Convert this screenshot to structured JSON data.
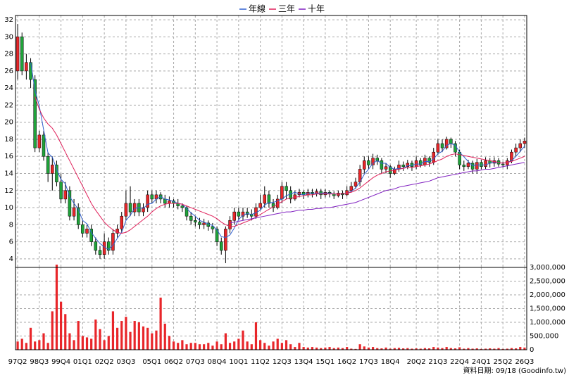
{
  "chart_data": [
    {
      "type": "candlestick",
      "legend": "top",
      "grid": true,
      "up_color": "#e8262a",
      "down_color": "#1fa33a",
      "wick_color": "#000000",
      "ylim": [
        3,
        32.5
      ],
      "yticks": [
        4,
        6,
        8,
        10,
        12,
        14,
        16,
        18,
        20,
        22,
        24,
        26,
        28,
        30,
        32
      ],
      "open": [
        26,
        30,
        26,
        27,
        25,
        17,
        18.5,
        16,
        14,
        15,
        13,
        11,
        12,
        9,
        10,
        8,
        7,
        7.5,
        6,
        5,
        4.5,
        6,
        5,
        7,
        7.5,
        9,
        10.5,
        9.5,
        10.5,
        9.5,
        10,
        11.5,
        11,
        11.5,
        11,
        10.5,
        10.8,
        10.5,
        10.2,
        10,
        9,
        8.5,
        8.3,
        8,
        8.2,
        7.8,
        7.5,
        6,
        5,
        7.5,
        8.5,
        9.5,
        9,
        9.5,
        9.2,
        9,
        10,
        10.5,
        11.5,
        10.5,
        10,
        11,
        12.5,
        12,
        11,
        11.5,
        11.8,
        11.5,
        11.8,
        11.6,
        11.9,
        11.5,
        11.8,
        11.6,
        11.4,
        11.7,
        11.5,
        12,
        12.5,
        13,
        14.5,
        15.5,
        15,
        15.8,
        15.5,
        14.5,
        14.8,
        14,
        14.5,
        15,
        14.8,
        15.2,
        14.8,
        15.5,
        15,
        15.8,
        15.3,
        16.5,
        17.5,
        17,
        18,
        17.5,
        16.5,
        15,
        14.8,
        15.2,
        14.5,
        15.3,
        14.8,
        15.5,
        15.2,
        15.5,
        15.1,
        15,
        15.5,
        16.5,
        17,
        17.5
      ],
      "high": [
        31.5,
        30.5,
        28,
        27.5,
        25.5,
        19,
        19,
        16.5,
        16,
        15.5,
        14,
        13,
        12.5,
        11,
        10.5,
        8.5,
        8,
        8,
        6.5,
        5.5,
        7,
        6.5,
        7.5,
        8,
        9.5,
        12,
        12.5,
        11,
        11,
        10.5,
        12,
        12,
        12,
        11.8,
        11.5,
        11.3,
        11,
        11,
        10.5,
        10.2,
        9.5,
        9,
        8.8,
        8.7,
        8.5,
        8.2,
        7.8,
        6.5,
        7.8,
        9,
        10,
        10,
        10,
        10,
        9.8,
        10.5,
        11.5,
        12.5,
        12,
        11,
        11.5,
        13,
        13,
        12.5,
        12,
        12.2,
        12,
        12.2,
        12.2,
        12.2,
        12.2,
        12.2,
        12,
        11.9,
        12,
        12,
        12.5,
        13,
        13.5,
        15,
        16,
        16,
        16.3,
        16.2,
        15.8,
        15.2,
        15,
        14.8,
        15.5,
        15.4,
        15.6,
        15.5,
        16,
        15.8,
        16.2,
        16,
        17,
        18,
        18,
        18.3,
        18.2,
        17.8,
        16.8,
        15.5,
        15.6,
        15.5,
        15.7,
        15.6,
        15.9,
        15.8,
        15.9,
        15.8,
        15.4,
        15.8,
        16.8,
        17.5,
        18,
        18.2
      ],
      "low": [
        25,
        25.5,
        25,
        24,
        16.5,
        16.5,
        15.5,
        13,
        12,
        12.5,
        10.5,
        10.5,
        8.5,
        8.5,
        7.5,
        6.5,
        6.5,
        5.5,
        4.5,
        4,
        4,
        4.5,
        4.5,
        6.5,
        7,
        8.5,
        9,
        9,
        9,
        9,
        9.5,
        10.5,
        10.5,
        10.5,
        10,
        10,
        10,
        9.8,
        9.5,
        8.5,
        8,
        7.8,
        7.5,
        7.5,
        7.3,
        7,
        5.5,
        4.5,
        3.5,
        7,
        8,
        8.5,
        8.5,
        8.8,
        8.5,
        8.7,
        9.8,
        10,
        10,
        9.5,
        9.8,
        10.5,
        11,
        10.5,
        10.8,
        11.2,
        11,
        11.2,
        11.2,
        11.3,
        11,
        11.2,
        11.2,
        11,
        11.2,
        11,
        11.3,
        11.8,
        12.2,
        12.5,
        14,
        14.5,
        14.5,
        15,
        14,
        14,
        13.5,
        13.8,
        14.2,
        14.3,
        14.5,
        14.3,
        14.5,
        14.7,
        14.8,
        14.8,
        15,
        16.2,
        16.5,
        16.8,
        17,
        16,
        14.5,
        14.3,
        14.5,
        14,
        14,
        14.5,
        14.5,
        14.7,
        14.8,
        14.8,
        14.7,
        14.5,
        15.2,
        16,
        16.5,
        17
      ],
      "close": [
        30,
        26,
        27,
        25,
        17,
        18.5,
        16,
        14,
        15,
        13,
        11,
        12,
        9,
        10,
        8,
        7,
        7.5,
        6,
        5,
        4.5,
        6,
        5,
        7,
        7.5,
        9,
        10.5,
        9.5,
        10.5,
        9.5,
        10,
        11.5,
        11,
        11.5,
        11,
        10.5,
        10.8,
        10.5,
        10.2,
        10,
        9,
        8.5,
        8.3,
        8,
        8.2,
        7.8,
        7.5,
        6,
        5,
        7.5,
        8.5,
        9.5,
        9,
        9.5,
        9.2,
        9,
        10,
        10.5,
        11.5,
        10.5,
        10,
        11,
        12.5,
        12,
        11,
        11.5,
        11.8,
        11.5,
        11.8,
        11.6,
        11.9,
        11.5,
        11.8,
        11.6,
        11.4,
        11.7,
        11.5,
        12,
        12.5,
        13,
        14.5,
        15.5,
        15,
        15.8,
        15.5,
        14.5,
        14.8,
        14,
        14.5,
        15,
        14.8,
        15.2,
        14.8,
        15.5,
        15,
        15.8,
        15.3,
        16.5,
        17.5,
        17,
        18,
        17.5,
        16.5,
        15,
        14.8,
        15.2,
        14.5,
        15.3,
        14.8,
        15.5,
        15.2,
        15.5,
        15.1,
        15,
        15.5,
        16.5,
        17,
        17.5,
        17.8
      ],
      "series": [
        {
          "name": "年線",
          "color": "#3060d0",
          "values": [
            null,
            null,
            null,
            27,
            23.75,
            21.9,
            19.1,
            16.4,
            15.9,
            14.5,
            13.3,
            12.8,
            11.3,
            10.5,
            9.8,
            8.5,
            8.1,
            7.1,
            6.4,
            5.8,
            5.4,
            5.1,
            5.6,
            6.4,
            7.1,
            8.5,
            9.1,
            9.9,
            10,
            9.9,
            10.4,
            10.5,
            11,
            11.3,
            11,
            10.9,
            10.7,
            10.5,
            10.4,
            9.9,
            9.4,
            9,
            8.5,
            8.3,
            8.1,
            7.9,
            7.4,
            6.6,
            6.5,
            6.8,
            7.6,
            8.6,
            9.1,
            9.3,
            9.2,
            9.4,
            9.7,
            10.3,
            10.6,
            10.6,
            10.8,
            11,
            11.4,
            11.6,
            11.8,
            11.6,
            11.5,
            11.7,
            11.7,
            11.7,
            11.7,
            11.7,
            11.7,
            11.6,
            11.6,
            11.6,
            11.7,
            11.9,
            12.3,
            13,
            13.9,
            14.5,
            15.2,
            15.5,
            15.2,
            15.2,
            14.7,
            14.5,
            14.6,
            14.6,
            14.9,
            14.95,
            15.1,
            15.1,
            15.4,
            15.4,
            15.7,
            16.3,
            16.6,
            17.3,
            17.5,
            17.3,
            16.5,
            15.95,
            15.4,
            14.9,
            15,
            15,
            15,
            15.2,
            15.3,
            15.3,
            15.2,
            15.3,
            15.5,
            16,
            16.6,
            17.2
          ]
        },
        {
          "name": "三年",
          "color": "#e0205a",
          "values": [
            null,
            null,
            null,
            null,
            23,
            21.5,
            20.5,
            19.8,
            19.3,
            18.5,
            17.5,
            16.5,
            15.5,
            14.5,
            13.5,
            12.5,
            11.5,
            10.5,
            9.7,
            9,
            8.3,
            7.8,
            7.4,
            7.1,
            7,
            7.1,
            7.4,
            7.8,
            8.2,
            8.6,
            9,
            9.5,
            9.9,
            10.2,
            10.4,
            10.5,
            10.5,
            10.5,
            10.4,
            10.2,
            10,
            9.8,
            9.6,
            9.4,
            9.2,
            9,
            8.7,
            8.3,
            8,
            7.8,
            7.8,
            8,
            8.2,
            8.4,
            8.6,
            8.9,
            9.2,
            9.5,
            9.8,
            10.1,
            10.4,
            10.7,
            11,
            11.1,
            11.2,
            11.3,
            11.4,
            11.5,
            11.5,
            11.6,
            11.6,
            11.6,
            11.6,
            11.6,
            11.6,
            11.6,
            11.7,
            11.8,
            12,
            12.3,
            12.7,
            13.1,
            13.5,
            13.8,
            14,
            14.2,
            14.3,
            14.4,
            14.5,
            14.6,
            14.7,
            14.7,
            14.8,
            14.9,
            15,
            15.1,
            15.3,
            15.5,
            15.7,
            16,
            16.2,
            16.3,
            16.2,
            16.1,
            16,
            15.9,
            15.8,
            15.7,
            15.6,
            15.5,
            15.4,
            15.3,
            15.2,
            15.3,
            15.4,
            15.6,
            15.8,
            16
          ]
        },
        {
          "name": "十年",
          "color": "#8020c0",
          "values": [
            null,
            null,
            null,
            null,
            null,
            null,
            null,
            null,
            null,
            null,
            null,
            null,
            null,
            null,
            null,
            null,
            null,
            null,
            null,
            null,
            null,
            null,
            null,
            null,
            null,
            null,
            null,
            null,
            null,
            null,
            null,
            null,
            null,
            null,
            null,
            null,
            null,
            null,
            null,
            null,
            null,
            null,
            null,
            null,
            null,
            null,
            null,
            null,
            null,
            8.2,
            8.3,
            8.4,
            8.5,
            8.6,
            8.7,
            8.8,
            8.9,
            9,
            9.1,
            9.2,
            9.3,
            9.4,
            9.5,
            9.5,
            9.6,
            9.7,
            9.7,
            9.8,
            9.8,
            9.9,
            9.9,
            10,
            10,
            10.1,
            10.2,
            10.3,
            10.4,
            10.5,
            10.6,
            10.8,
            11,
            11.2,
            11.4,
            11.6,
            11.8,
            12,
            12.1,
            12.2,
            12.4,
            12.5,
            12.6,
            12.7,
            12.8,
            12.9,
            13,
            13.1,
            13.3,
            13.5,
            13.6,
            13.7,
            13.8,
            13.9,
            14,
            14.1,
            14.2,
            14.3,
            14.3,
            14.4,
            14.5,
            14.5,
            14.6,
            14.7,
            14.8,
            14.9,
            15,
            15.1,
            15.2,
            15.3
          ]
        }
      ]
    },
    {
      "type": "bar",
      "color": "#e8262a",
      "grid": true,
      "ylim": [
        0,
        3000000
      ],
      "yticks": [
        0,
        {
          "value": 500000,
          "label": "500,000"
        },
        {
          "value": 1000000,
          "label": "1,000,000"
        },
        {
          "value": 1500000,
          "label": "1,500,000"
        },
        {
          "value": 2000000,
          "label": "2,000,000"
        },
        {
          "value": 2500000,
          "label": "2,500,000"
        },
        {
          "value": 3000000,
          "label": "3,000,000"
        }
      ],
      "categories": [
        "97Q2",
        null,
        null,
        null,
        null,
        "98Q3",
        null,
        null,
        null,
        null,
        "99Q4",
        null,
        null,
        null,
        null,
        "01Q1",
        null,
        null,
        null,
        null,
        "02Q2",
        null,
        null,
        null,
        null,
        "03Q3",
        null,
        null,
        null,
        null,
        null,
        "05Q1",
        null,
        null,
        null,
        null,
        "06Q2",
        null,
        null,
        null,
        null,
        "07Q3",
        null,
        null,
        null,
        null,
        "08Q4",
        null,
        null,
        null,
        null,
        "10Q1",
        null,
        null,
        null,
        null,
        "11Q2",
        null,
        null,
        null,
        null,
        "12Q3",
        null,
        null,
        null,
        null,
        "13Q4",
        null,
        null,
        null,
        null,
        "15Q1",
        null,
        null,
        null,
        null,
        "16Q2",
        null,
        null,
        null,
        null,
        "17Q3",
        null,
        null,
        null,
        null,
        "18Q4",
        null,
        null,
        null,
        null,
        null,
        "20Q2",
        null,
        null,
        null,
        null,
        "21Q3",
        null,
        null,
        null,
        null,
        "22Q4",
        null,
        null,
        null,
        null,
        "24Q1",
        null,
        null,
        null,
        null,
        "25Q2",
        null,
        null,
        null,
        null,
        "26Q3"
      ],
      "values": [
        300000,
        400000,
        250000,
        800000,
        300000,
        350000,
        600000,
        250000,
        1400000,
        3100000,
        1750000,
        1300000,
        600000,
        350000,
        1050000,
        500000,
        450000,
        400000,
        1100000,
        750000,
        350000,
        500000,
        1400000,
        800000,
        1050000,
        1200000,
        650000,
        1050000,
        1000000,
        850000,
        800000,
        600000,
        700000,
        1900000,
        950000,
        500000,
        300000,
        250000,
        350000,
        200000,
        250000,
        250000,
        200000,
        200000,
        250000,
        150000,
        300000,
        200000,
        600000,
        250000,
        300000,
        400000,
        700000,
        300000,
        200000,
        1000000,
        350000,
        250000,
        150000,
        300000,
        400000,
        250000,
        350000,
        200000,
        100000,
        250000,
        100000,
        80000,
        100000,
        80000,
        60000,
        80000,
        100000,
        60000,
        80000,
        60000,
        100000,
        40000,
        30000,
        200000,
        120000,
        80000,
        100000,
        60000,
        50000,
        80000,
        40000,
        60000,
        70000,
        50000,
        60000,
        40000,
        50000,
        40000,
        60000,
        50000,
        100000,
        80000,
        60000,
        100000,
        60000,
        50000,
        90000,
        40000,
        60000,
        40000,
        50000,
        30000,
        40000,
        50000,
        40000,
        60000,
        30000,
        40000,
        60000,
        50000,
        100000,
        80000
      ]
    }
  ],
  "footer": "資料日期: 09/18 (Goodinfo.tw)"
}
